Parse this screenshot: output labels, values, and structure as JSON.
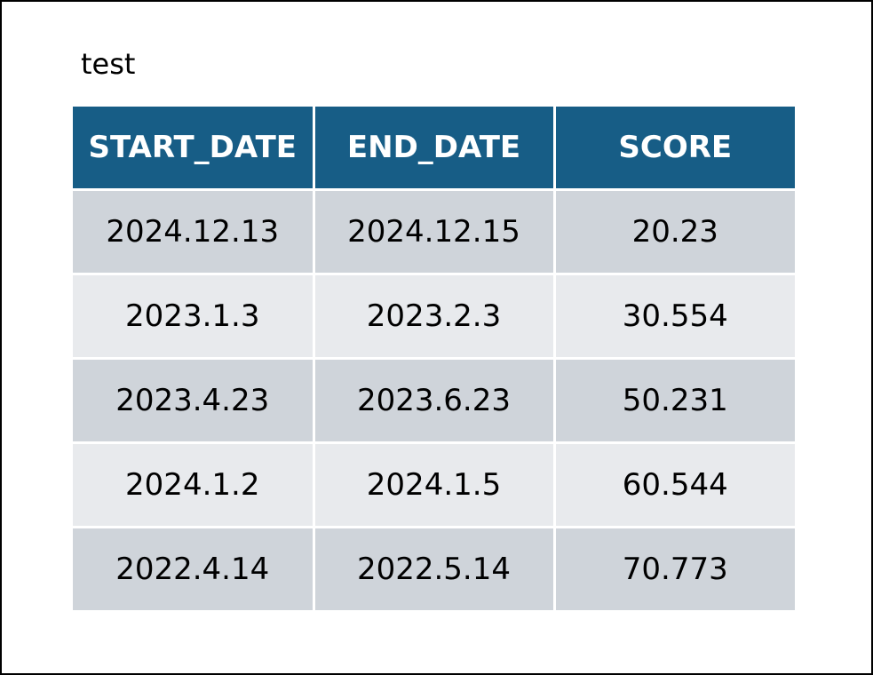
{
  "title": "test",
  "colors": {
    "header_bg": "#175d86",
    "header_text": "#ffffff",
    "row_band_1": "#cfd4da",
    "row_band_2": "#e8eaed"
  },
  "table": {
    "columns": [
      "START_DATE",
      "END_DATE",
      "SCORE"
    ],
    "rows": [
      [
        "2024.12.13",
        "2024.12.15",
        "20.23"
      ],
      [
        "2023.1.3",
        "2023.2.3",
        "30.554"
      ],
      [
        "2023.4.23",
        "2023.6.23",
        "50.231"
      ],
      [
        "2024.1.2",
        "2024.1.5",
        "60.544"
      ],
      [
        "2022.4.14",
        "2022.5.14",
        "70.773"
      ]
    ]
  }
}
